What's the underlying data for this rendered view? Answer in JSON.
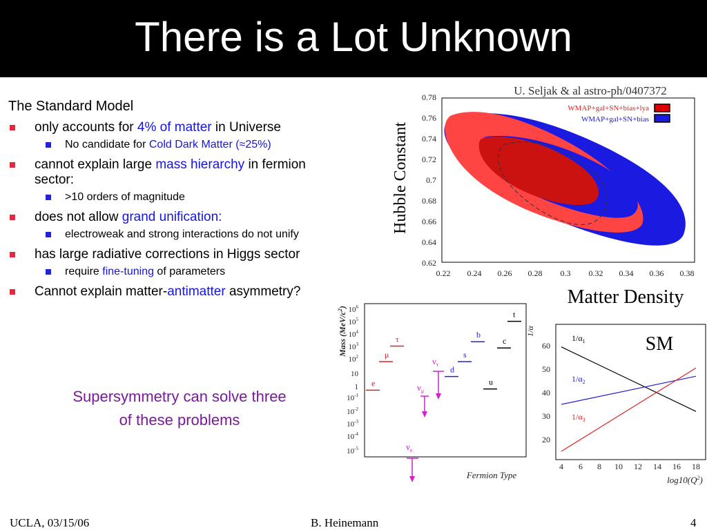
{
  "slide": {
    "title": "There is a Lot Unknown",
    "heading": "The Standard Model",
    "bullets": {
      "b1": {
        "pre": "only accounts for ",
        "hl": "4% of matter",
        "post": " in Universe"
      },
      "b1s": {
        "pre": "No candidate for ",
        "hl": "Cold Dark Matter (≈25%)"
      },
      "b2": {
        "pre": "cannot explain large ",
        "hl": "mass hierarchy",
        "post": " in fermion sector:"
      },
      "b2s": ">10 orders of magnitude",
      "b3": {
        "pre": "does not allow ",
        "hl": "grand unification:"
      },
      "b3s": "electroweak and strong interactions do not unify",
      "b4": "has large radiative corrections in Higgs sector",
      "b4s": {
        "pre": "require ",
        "hl": "fine-tuning",
        "post": " of parameters"
      },
      "b5": {
        "pre": "Cannot explain matter-",
        "hl": "antimatter",
        "post": " asymmetry?"
      }
    },
    "susy_line1": "Supersymmetry can solve three",
    "susy_line2": "of  these problems"
  },
  "footer": {
    "left": "UCLA, 03/15/06",
    "center": "B. Heinemann",
    "right": "4"
  },
  "colors": {
    "red_bullet": "#e8283c",
    "blue_bullet": "#2222dd",
    "highlight": "#1515e0",
    "purple": "#7a1a9a",
    "wmap_red": "#ff4444",
    "wmap_blue": "#1a1ae0"
  },
  "chart_data": [
    {
      "type": "contour",
      "title": "U. Seljak & al astro-ph/0407372",
      "xlabel": "Matter Density",
      "ylabel": "Hubble Constant",
      "xlim": [
        0.22,
        0.38
      ],
      "ylim": [
        0.62,
        0.78
      ],
      "xticks": [
        "0.22",
        "0.24",
        "0.26",
        "0.28",
        "0.3",
        "0.32",
        "0.34",
        "0.36",
        "0.38"
      ],
      "yticks": [
        "0.78",
        "0.76",
        "0.74",
        "0.72",
        "0.7",
        "0.68",
        "0.66",
        "0.64",
        "0.62"
      ],
      "legend_position": "top-right",
      "series": [
        {
          "name": "WMAP+gal+SN+bias+lya",
          "color": "#ff4444"
        },
        {
          "name": "WMAP+gal+SN+bias",
          "color": "#1a1ae0"
        }
      ]
    },
    {
      "type": "scatter",
      "xlabel": "Fermion Type",
      "ylabel_pre": "Mass (MeV/c",
      "ylabel_sup": "2",
      "ylabel_post": ")",
      "yticks": [
        {
          "b": "10",
          "e": "6"
        },
        {
          "b": "10",
          "e": "5"
        },
        {
          "b": "10",
          "e": "4"
        },
        {
          "b": "10",
          "e": "3"
        },
        {
          "b": "10",
          "e": "2"
        },
        {
          "b": "10",
          "e": ""
        },
        {
          "b": "1",
          "e": ""
        },
        {
          "b": "10",
          "e": "-1"
        },
        {
          "b": "10",
          "e": "-2"
        },
        {
          "b": "10",
          "e": "-3"
        },
        {
          "b": "10",
          "e": "-4"
        },
        {
          "b": "10",
          "e": "-5"
        }
      ],
      "points": [
        {
          "label": "e",
          "log10_mass": -0.3,
          "color": "#e02020"
        },
        {
          "label": "μ",
          "log10_mass": 2.0,
          "color": "#e02020"
        },
        {
          "label": "τ",
          "log10_mass": 3.25,
          "color": "#e02020"
        },
        {
          "label": "d",
          "log10_mass": 0.8,
          "color": "#2020d0"
        },
        {
          "label": "s",
          "log10_mass": 2.0,
          "color": "#2020d0"
        },
        {
          "label": "b",
          "log10_mass": 3.6,
          "color": "#2020d0"
        },
        {
          "label": "u",
          "log10_mass": -0.2,
          "color": "#000000"
        },
        {
          "label": "c",
          "log10_mass": 3.1,
          "color": "#000000"
        },
        {
          "label": "t",
          "log10_mass": 5.24,
          "color": "#000000"
        }
      ],
      "neutrinos": [
        {
          "label": "ν",
          "sub": "e",
          "color": "#d020d0"
        },
        {
          "label": "ν",
          "sub": "μ",
          "color": "#d020d0"
        },
        {
          "label": "ν",
          "sub": "τ",
          "color": "#d020d0"
        }
      ]
    },
    {
      "type": "line",
      "title": "SM",
      "xlabel_pre": "log10(Q",
      "xlabel_sup": "2",
      "xlabel_post": ")",
      "ylabel": "1/α",
      "xlim": [
        4,
        18
      ],
      "ylim": [
        15,
        62
      ],
      "xticks": [
        "4",
        "6",
        "8",
        "10",
        "12",
        "14",
        "16",
        "18"
      ],
      "yticks": [
        "60",
        "50",
        "40",
        "30",
        "20"
      ],
      "series": [
        {
          "name_b": "1/α",
          "name_sub": "1",
          "color": "#000000",
          "x": [
            4,
            18
          ],
          "y": [
            59.5,
            32
          ]
        },
        {
          "name_b": "1/α",
          "name_sub": "2",
          "color": "#2020d0",
          "x": [
            4,
            18
          ],
          "y": [
            35,
            47
          ]
        },
        {
          "name_b": "1/α",
          "name_sub": "3",
          "color": "#e02020",
          "x": [
            4,
            18
          ],
          "y": [
            15,
            50.5
          ]
        }
      ]
    }
  ]
}
